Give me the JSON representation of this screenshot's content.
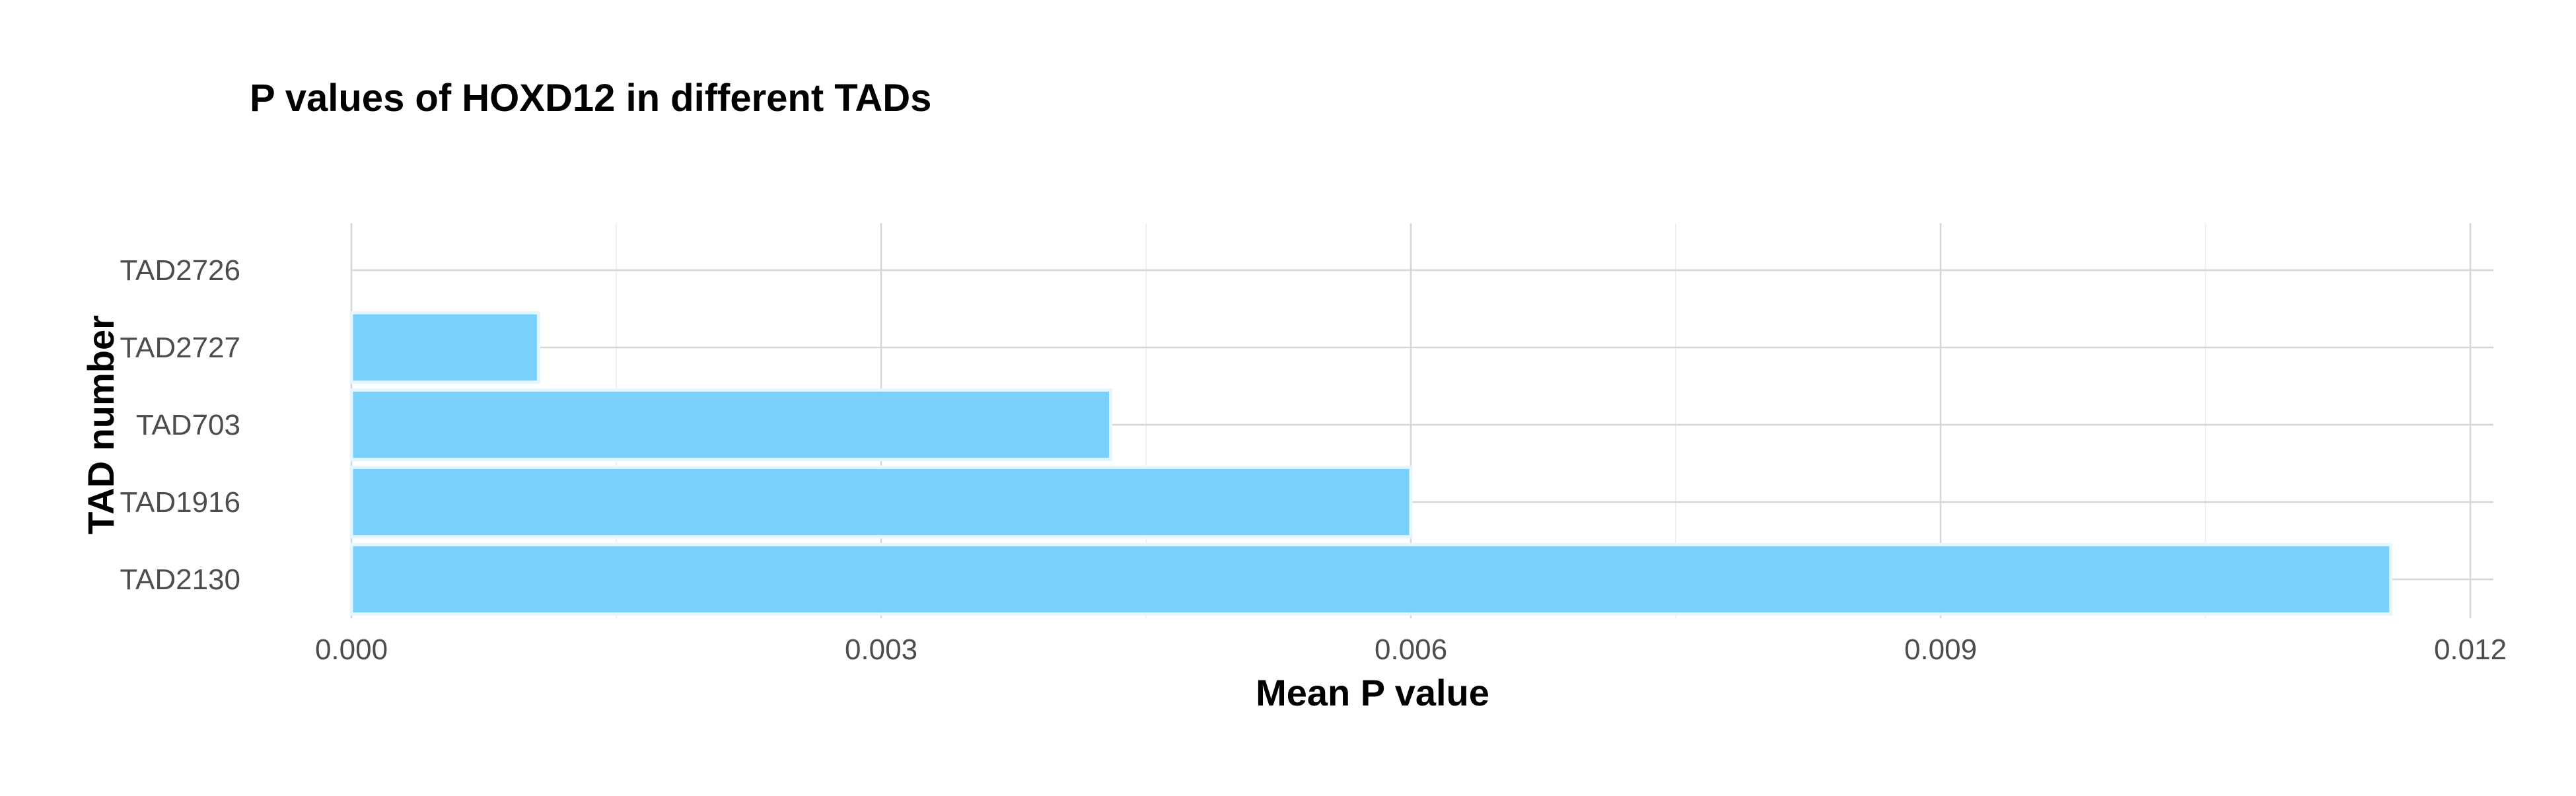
{
  "chart_data": {
    "type": "bar",
    "orientation": "horizontal",
    "title": "P values of HOXD12 in different TADs",
    "xlabel": "Mean P value",
    "ylabel": "TAD number",
    "categories": [
      "TAD2726",
      "TAD2727",
      "TAD703",
      "TAD1916",
      "TAD2130"
    ],
    "values": [
      0,
      0.00106,
      0.0043,
      0.006,
      0.01155
    ],
    "xlim": [
      0,
      0.012
    ],
    "xticks": [
      0,
      0.003,
      0.006,
      0.009,
      0.012
    ],
    "xtick_labels": [
      "0.000",
      "0.003",
      "0.006",
      "0.009",
      "0.012"
    ],
    "grid": true,
    "bar_color": "#74cffd",
    "bar_edge_color": "#e6f6ff"
  }
}
